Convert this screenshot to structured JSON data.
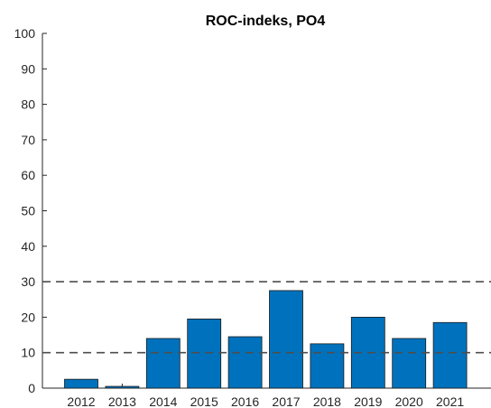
{
  "chart_data": {
    "type": "bar",
    "title": "ROC-indeks, PO4",
    "xlabel": "",
    "ylabel": "",
    "categories": [
      "2012",
      "2013",
      "2014",
      "2015",
      "2016",
      "2017",
      "2018",
      "2019",
      "2020",
      "2021"
    ],
    "values": [
      2.5,
      0.5,
      14,
      19.5,
      14.5,
      27.5,
      12.5,
      20,
      14,
      18.5
    ],
    "ylim": [
      0,
      100
    ],
    "yticks": [
      "0",
      "10",
      "20",
      "30",
      "40",
      "50",
      "60",
      "70",
      "80",
      "90",
      "100"
    ],
    "reference_lines": [
      10,
      30
    ],
    "grid": false,
    "legend": "none",
    "colors": {
      "bar": "#0072BD",
      "bar_edge": "#1a1a1a",
      "reference_line": "#4d4d4d",
      "axis": "#262626"
    }
  }
}
